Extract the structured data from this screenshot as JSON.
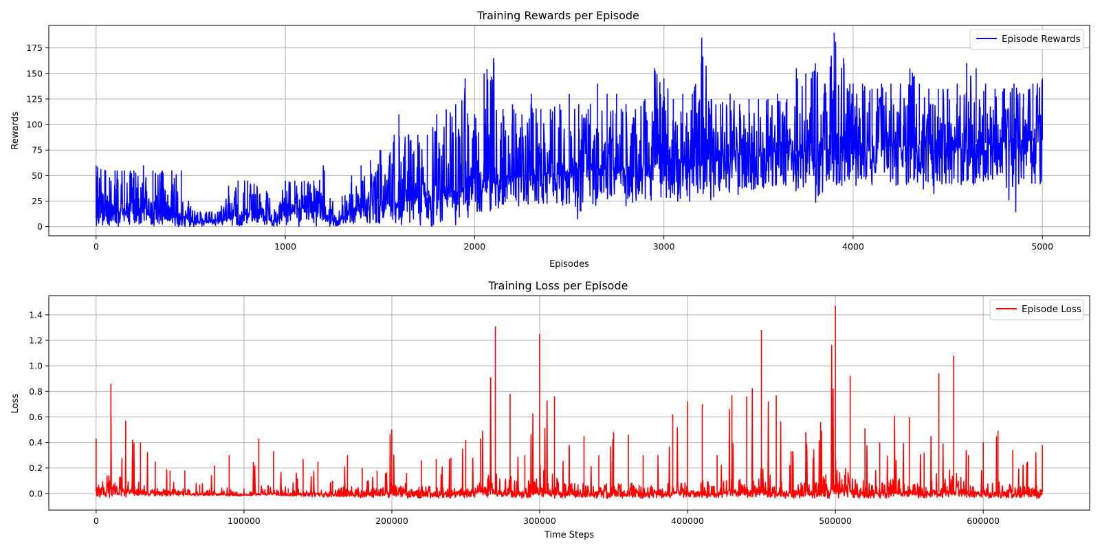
{
  "chart_data": [
    {
      "type": "line",
      "title": "Training Rewards per Episode",
      "xlabel": "Episodes",
      "ylabel": "Rewards",
      "xlim": [
        -250,
        5250
      ],
      "ylim": [
        -9,
        197
      ],
      "xticks": [
        0,
        1000,
        2000,
        3000,
        4000,
        5000
      ],
      "yticks": [
        0,
        25,
        50,
        75,
        100,
        125,
        150,
        175
      ],
      "xtick_labels": [
        "0",
        "1000",
        "2000",
        "3000",
        "4000",
        "5000"
      ],
      "ytick_labels": [
        "0",
        "25",
        "50",
        "75",
        "100",
        "125",
        "150",
        "175"
      ],
      "grid": true,
      "legend": "top-right",
      "series": [
        {
          "name": "Episode Rewards",
          "color": "#0000ff",
          "x": [
            0,
            50,
            100,
            150,
            200,
            250,
            300,
            350,
            400,
            450,
            500,
            550,
            600,
            650,
            700,
            750,
            800,
            850,
            900,
            950,
            1000,
            1050,
            1100,
            1150,
            1200,
            1250,
            1300,
            1350,
            1400,
            1450,
            1500,
            1550,
            1600,
            1650,
            1700,
            1750,
            1800,
            1850,
            1900,
            1950,
            2000,
            2050,
            2100,
            2150,
            2200,
            2250,
            2300,
            2350,
            2400,
            2450,
            2500,
            2550,
            2600,
            2650,
            2700,
            2750,
            2800,
            2850,
            2900,
            2950,
            3000,
            3050,
            3100,
            3150,
            3200,
            3250,
            3300,
            3350,
            3400,
            3450,
            3500,
            3550,
            3600,
            3650,
            3700,
            3750,
            3800,
            3850,
            3900,
            3950,
            4000,
            4050,
            4100,
            4150,
            4200,
            4250,
            4300,
            4350,
            4400,
            4450,
            4500,
            4550,
            4600,
            4650,
            4700,
            4750,
            4800,
            4850,
            4900,
            4950,
            5000
          ],
          "mean": [
            8,
            15,
            15,
            15,
            18,
            18,
            10,
            12,
            8,
            12,
            5,
            5,
            5,
            5,
            8,
            12,
            12,
            10,
            8,
            5,
            18,
            18,
            18,
            18,
            15,
            5,
            8,
            15,
            20,
            20,
            20,
            22,
            25,
            25,
            28,
            30,
            32,
            35,
            35,
            38,
            42,
            44,
            45,
            46,
            48,
            50,
            50,
            52,
            52,
            54,
            55,
            56,
            56,
            57,
            58,
            58,
            58,
            60,
            60,
            62,
            62,
            64,
            64,
            65,
            66,
            67,
            68,
            68,
            70,
            70,
            71,
            72,
            72,
            73,
            74,
            74,
            75,
            75,
            76,
            76,
            77,
            77,
            78,
            78,
            78,
            79,
            79,
            80,
            80,
            80,
            81,
            81,
            82,
            82,
            82,
            83,
            83,
            84,
            84,
            84,
            85
          ],
          "low": [
            0,
            0,
            0,
            0,
            0,
            0,
            0,
            0,
            0,
            0,
            0,
            0,
            0,
            0,
            0,
            0,
            0,
            0,
            0,
            0,
            0,
            0,
            0,
            0,
            0,
            0,
            0,
            0,
            0,
            0,
            0,
            0,
            0,
            0,
            0,
            0,
            0,
            0,
            0,
            5,
            10,
            15,
            15,
            15,
            15,
            20,
            20,
            20,
            20,
            20,
            20,
            0,
            20,
            20,
            25,
            25,
            20,
            25,
            25,
            25,
            25,
            25,
            25,
            0,
            25,
            25,
            30,
            30,
            30,
            30,
            30,
            30,
            35,
            35,
            35,
            35,
            5,
            35,
            40,
            40,
            40,
            40,
            40,
            40,
            40,
            40,
            40,
            40,
            20,
            40,
            40,
            40,
            40,
            40,
            40,
            40,
            40,
            5,
            40,
            40,
            40
          ],
          "high": [
            60,
            55,
            55,
            55,
            55,
            60,
            55,
            55,
            55,
            55,
            20,
            15,
            15,
            15,
            40,
            45,
            45,
            40,
            35,
            15,
            45,
            45,
            45,
            45,
            60,
            25,
            30,
            50,
            60,
            65,
            75,
            70,
            110,
            90,
            90,
            90,
            110,
            115,
            120,
            145,
            110,
            150,
            165,
            115,
            120,
            110,
            130,
            115,
            115,
            120,
            130,
            120,
            115,
            140,
            130,
            130,
            120,
            115,
            125,
            155,
            145,
            125,
            130,
            130,
            185,
            125,
            120,
            130,
            120,
            125,
            125,
            125,
            130,
            125,
            155,
            150,
            160,
            140,
            190,
            165,
            140,
            140,
            135,
            140,
            140,
            140,
            155,
            140,
            135,
            135,
            135,
            140,
            160,
            155,
            140,
            135,
            135,
            140,
            130,
            140,
            145
          ],
          "noise_seed": 7
        }
      ]
    },
    {
      "type": "line",
      "title": "Training Loss per Episode",
      "xlabel": "Time Steps",
      "ylabel": "Loss",
      "xlim": [
        -32000,
        672000
      ],
      "ylim": [
        -0.13,
        1.55
      ],
      "xticks": [
        0,
        100000,
        200000,
        300000,
        400000,
        500000,
        600000
      ],
      "yticks": [
        0.0,
        0.2,
        0.4,
        0.6,
        0.8,
        1.0,
        1.2,
        1.4
      ],
      "xtick_labels": [
        "0",
        "100000",
        "200000",
        "300000",
        "400000",
        "500000",
        "600000"
      ],
      "ytick_labels": [
        "0.0",
        "0.2",
        "0.4",
        "0.6",
        "0.8",
        "1.0",
        "1.2",
        "1.4"
      ],
      "grid": true,
      "legend": "top-right",
      "series": [
        {
          "name": "Episode Loss",
          "color": "#ff0000",
          "x": [
            0,
            10000,
            20000,
            30000,
            40000,
            50000,
            60000,
            70000,
            80000,
            90000,
            100000,
            110000,
            120000,
            130000,
            140000,
            150000,
            160000,
            170000,
            180000,
            190000,
            200000,
            210000,
            220000,
            230000,
            240000,
            250000,
            260000,
            270000,
            280000,
            290000,
            300000,
            310000,
            320000,
            330000,
            340000,
            350000,
            360000,
            370000,
            380000,
            390000,
            400000,
            410000,
            420000,
            430000,
            440000,
            450000,
            460000,
            470000,
            480000,
            490000,
            500000,
            510000,
            520000,
            530000,
            540000,
            550000,
            560000,
            570000,
            580000,
            590000,
            600000,
            610000,
            620000,
            630000,
            640000
          ],
          "mean": [
            0.02,
            0.03,
            0.03,
            0.02,
            0.01,
            0.01,
            0.01,
            0.0,
            0.0,
            -0.01,
            -0.01,
            -0.01,
            0.0,
            0.0,
            0.0,
            0.0,
            0.01,
            0.01,
            0.01,
            0.01,
            0.01,
            0.01,
            0.01,
            0.01,
            0.01,
            0.01,
            0.01,
            0.01,
            0.01,
            0.01,
            0.01,
            0.01,
            0.01,
            0.01,
            0.01,
            0.01,
            0.01,
            0.01,
            0.01,
            0.01,
            0.01,
            0.01,
            0.01,
            0.01,
            0.01,
            0.01,
            0.01,
            0.01,
            0.01,
            0.01,
            0.01,
            0.01,
            0.01,
            0.01,
            0.01,
            0.01,
            0.01,
            0.01,
            0.01,
            0.01,
            0.01,
            0.01,
            0.01,
            0.01,
            0.01
          ],
          "high": [
            0.43,
            0.86,
            0.57,
            0.4,
            0.25,
            0.18,
            0.18,
            0.07,
            0.22,
            0.3,
            0.04,
            0.43,
            0.33,
            0.04,
            0.27,
            0.25,
            0.1,
            0.3,
            0.2,
            0.18,
            0.5,
            0.16,
            0.26,
            0.27,
            0.28,
            0.42,
            0.43,
            1.31,
            0.78,
            0.3,
            1.25,
            0.76,
            0.38,
            0.45,
            0.3,
            0.48,
            0.46,
            0.3,
            0.3,
            0.62,
            0.72,
            0.7,
            0.3,
            0.77,
            0.76,
            1.28,
            0.77,
            0.33,
            0.48,
            0.56,
            1.47,
            0.92,
            0.51,
            0.4,
            0.61,
            0.6,
            0.32,
            0.94,
            1.08,
            0.3,
            0.4,
            0.49,
            0.34,
            0.25,
            0.38
          ],
          "low": [
            -0.03,
            -0.04,
            -0.03,
            -0.03,
            -0.02,
            -0.03,
            -0.02,
            -0.02,
            -0.02,
            -0.02,
            -0.02,
            -0.02,
            -0.02,
            -0.02,
            -0.03,
            -0.03,
            -0.03,
            -0.03,
            -0.04,
            -0.03,
            -0.04,
            -0.04,
            -0.04,
            -0.04,
            -0.04,
            -0.04,
            -0.04,
            -0.04,
            -0.04,
            -0.04,
            -0.04,
            -0.04,
            -0.04,
            -0.04,
            -0.04,
            -0.04,
            -0.04,
            -0.04,
            -0.04,
            -0.04,
            -0.04,
            -0.04,
            -0.04,
            -0.04,
            -0.04,
            -0.04,
            -0.04,
            -0.04,
            -0.04,
            -0.04,
            -0.04,
            -0.04,
            -0.04,
            -0.04,
            -0.04,
            -0.04,
            -0.04,
            -0.04,
            -0.04,
            -0.04,
            -0.04,
            -0.04,
            -0.04,
            -0.04,
            -0.04
          ],
          "noise_seed": 13
        }
      ]
    }
  ]
}
